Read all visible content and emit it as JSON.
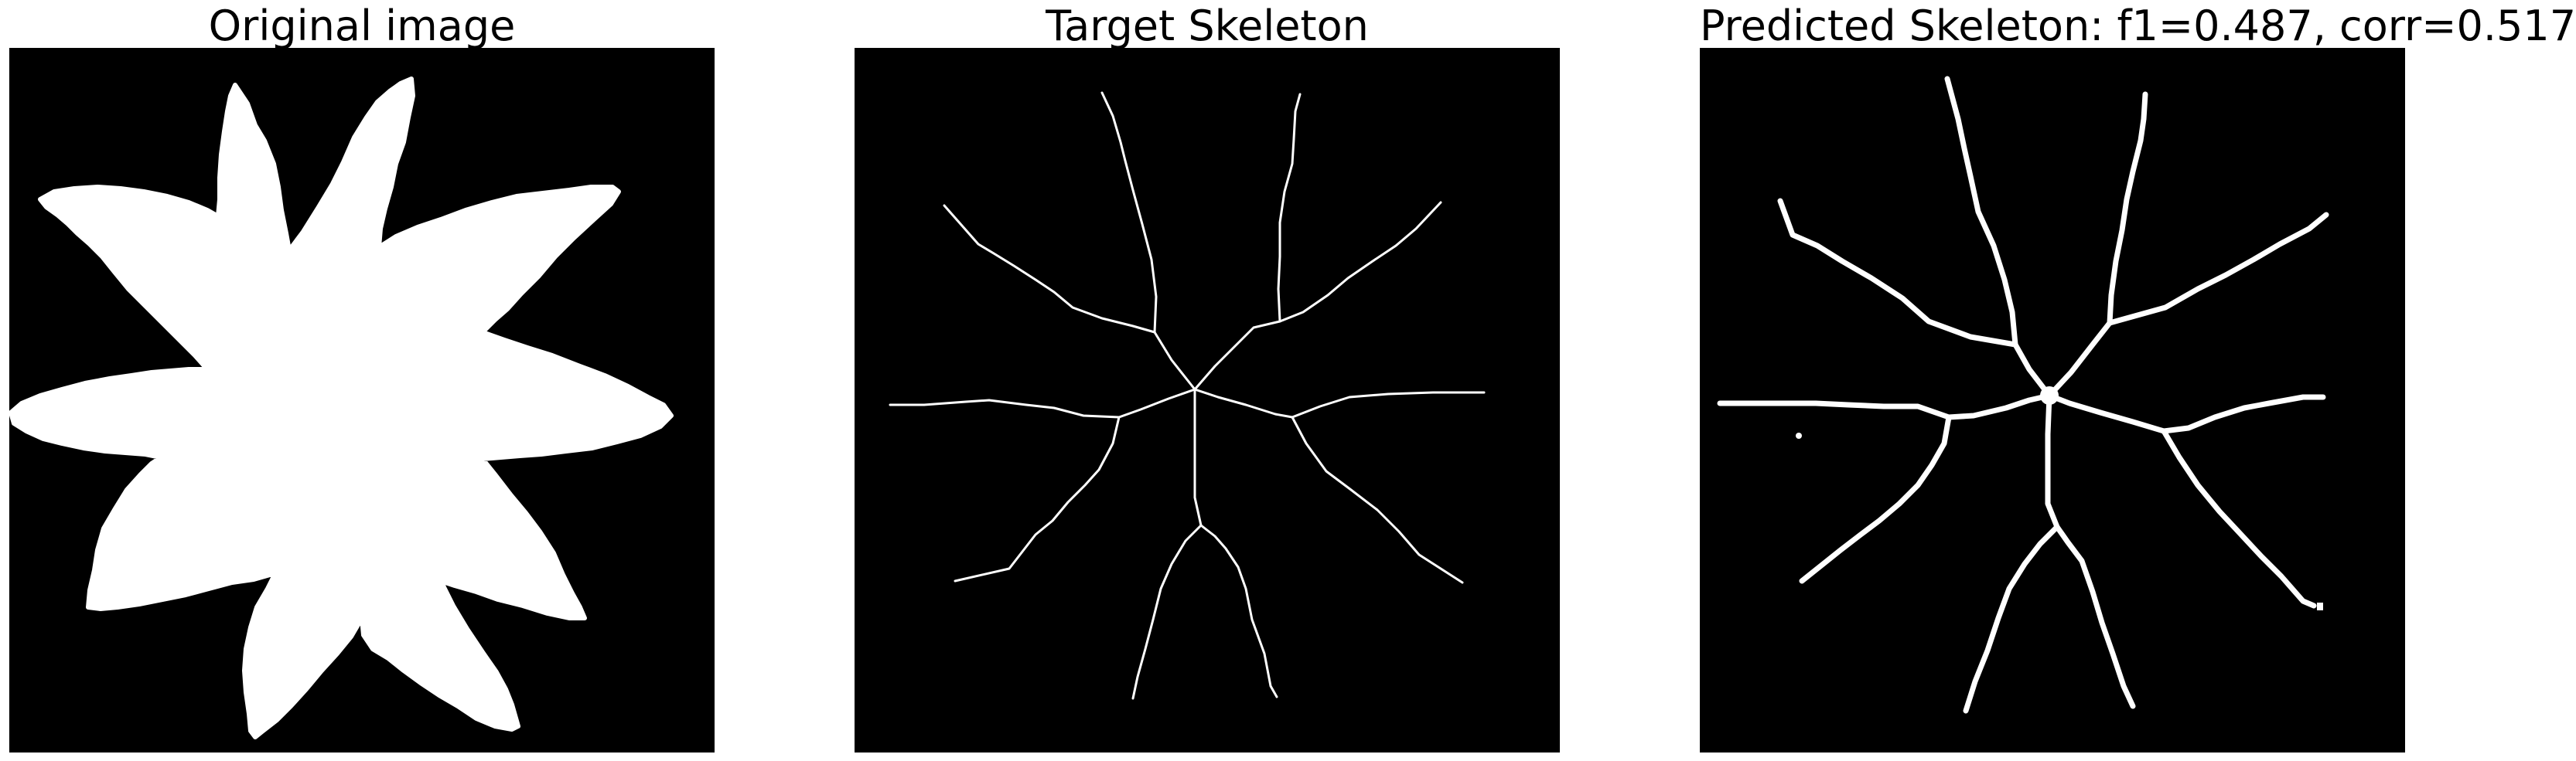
{
  "figure": {
    "background_color": "#ffffff",
    "image_background_color": "#000000",
    "foreground_color": "#ffffff",
    "panels": [
      {
        "title": "Original image"
      },
      {
        "title": "Target Skeleton"
      },
      {
        "title": "Predicted Skeleton: f1=0.487, corr=0.517"
      }
    ]
  }
}
